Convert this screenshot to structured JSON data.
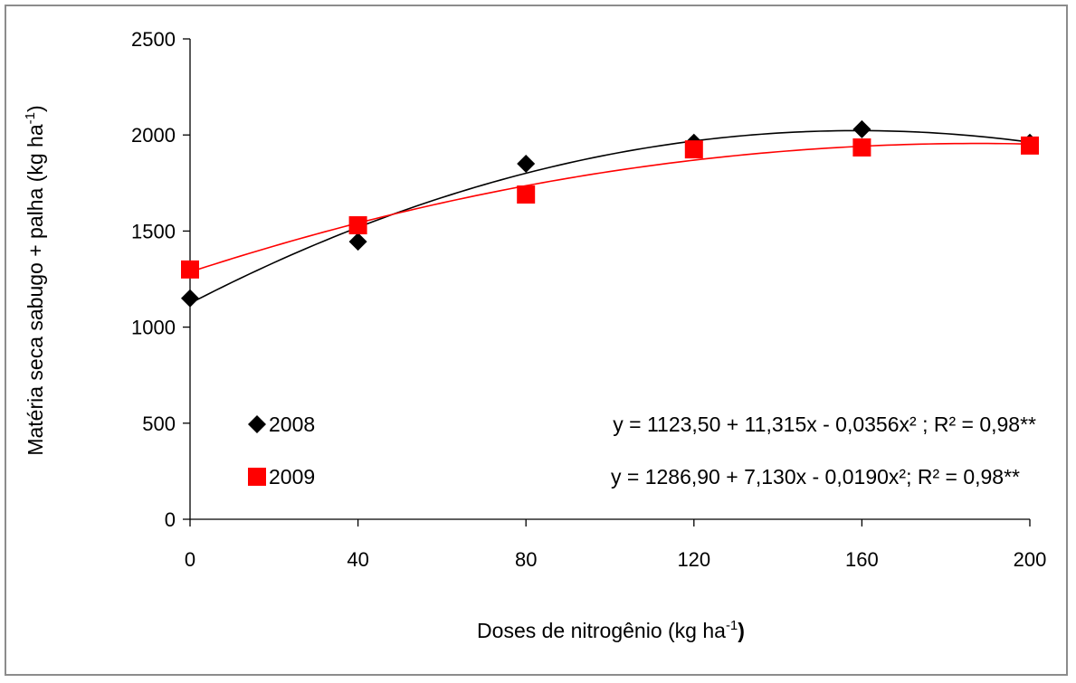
{
  "chart_data": {
    "type": "scatter",
    "xlabel": "Doses de nitrogênio (kg ha",
    "xlabel_sup": "-1",
    "xlabel_close": ")",
    "ylabel": "Matéria seca sabugo + palha (kg ha",
    "ylabel_sup": "-1",
    "ylabel_close": ")",
    "xlim": [
      0,
      200
    ],
    "ylim": [
      0,
      2500
    ],
    "x_ticks": [
      0,
      40,
      80,
      120,
      160,
      200
    ],
    "y_ticks": [
      0,
      500,
      1000,
      1500,
      2000,
      2500
    ],
    "grid": false,
    "legend_position": "bottom-left",
    "series": [
      {
        "name": "2008",
        "marker": "diamond",
        "color": "#000000",
        "x": [
          0,
          40,
          80,
          120,
          160,
          200
        ],
        "y": [
          1150,
          1445,
          1850,
          1960,
          2030,
          1960
        ],
        "fit": {
          "a": 1123.5,
          "b": 11.315,
          "c": -0.0356
        },
        "equation": "y = 1123,50 + 11,315x - 0,0356x² ; R² = 0,98**"
      },
      {
        "name": "2009",
        "marker": "square",
        "color": "#ff0000",
        "x": [
          0,
          40,
          80,
          120,
          160,
          200
        ],
        "y": [
          1300,
          1530,
          1690,
          1925,
          1935,
          1945
        ],
        "fit": {
          "a": 1286.9,
          "b": 7.13,
          "c": -0.019
        },
        "equation": "y = 1286,90 + 7,130x - 0,0190x²; R² = 0,98**"
      }
    ]
  }
}
